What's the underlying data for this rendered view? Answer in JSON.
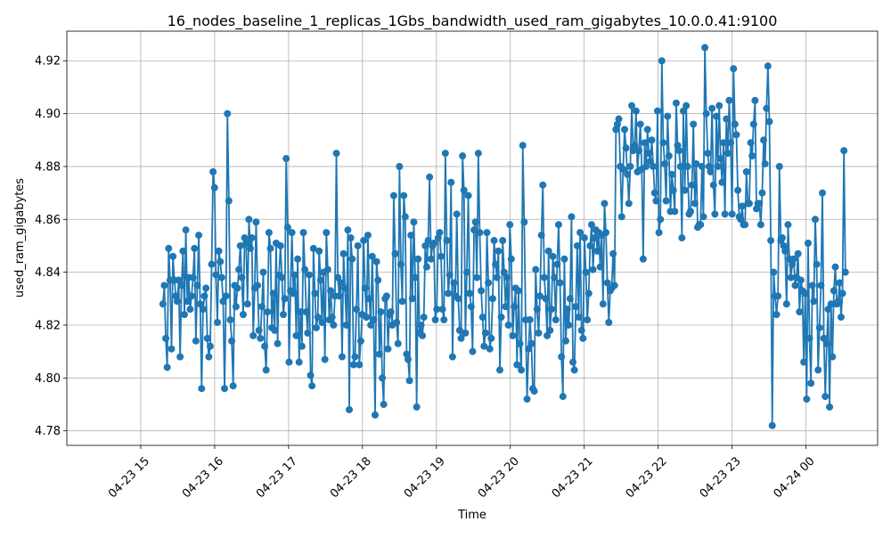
{
  "chart_data": {
    "type": "line",
    "title": "16_nodes_baseline_1_replicas_1Gbs_bandwidth_used_ram_gigabytes_10.0.0.41:9100",
    "xlabel": "Time",
    "ylabel": "used_ram_gigabytes",
    "x_ticks": [
      "04-23 15",
      "04-23 16",
      "04-23 17",
      "04-23 18",
      "04-23 19",
      "04-23 20",
      "04-23 21",
      "04-23 22",
      "04-23 23",
      "04-24 00"
    ],
    "y_ticks": [
      "4.78",
      "4.80",
      "4.82",
      "4.84",
      "4.86",
      "4.88",
      "4.90",
      "4.92"
    ],
    "xlim_hours": [
      14.0,
      24.97
    ],
    "ylim": [
      4.7745,
      4.9312
    ],
    "grid": true,
    "marker": "circle",
    "line_color": "#1f77b4",
    "series": [
      {
        "x_start": "04-23 15:18",
        "x_end": "04-24 00:32",
        "values": [
          4.828,
          4.835,
          4.815,
          4.804,
          4.849,
          4.837,
          4.811,
          4.846,
          4.837,
          4.831,
          4.829,
          4.837,
          4.808,
          4.835,
          4.848,
          4.824,
          4.856,
          4.829,
          4.838,
          4.826,
          4.831,
          4.838,
          4.849,
          4.814,
          4.835,
          4.854,
          4.828,
          4.796,
          4.826,
          4.831,
          4.834,
          4.815,
          4.808,
          4.812,
          4.843,
          4.878,
          4.872,
          4.839,
          4.821,
          4.848,
          4.844,
          4.838,
          4.829,
          4.796,
          4.831,
          4.9,
          4.867,
          4.822,
          4.814,
          4.797,
          4.835,
          4.827,
          4.834,
          4.841,
          4.85,
          4.838,
          4.824,
          4.853,
          4.851,
          4.828,
          4.86,
          4.849,
          4.853,
          4.816,
          4.834,
          4.859,
          4.835,
          4.818,
          4.815,
          4.827,
          4.84,
          4.812,
          4.803,
          4.825,
          4.855,
          4.849,
          4.819,
          4.832,
          4.818,
          4.851,
          4.813,
          4.839,
          4.85,
          4.838,
          4.824,
          4.83,
          4.883,
          4.857,
          4.806,
          4.833,
          4.855,
          4.832,
          4.839,
          4.816,
          4.845,
          4.806,
          4.825,
          4.812,
          4.855,
          4.841,
          4.825,
          4.817,
          4.839,
          4.801,
          4.797,
          4.849,
          4.832,
          4.819,
          4.823,
          4.848,
          4.837,
          4.821,
          4.84,
          4.807,
          4.855,
          4.841,
          4.822,
          4.833,
          4.823,
          4.82,
          4.831,
          4.885,
          4.838,
          4.831,
          4.836,
          4.808,
          4.847,
          4.834,
          4.82,
          4.856,
          4.788,
          4.853,
          4.845,
          4.805,
          4.808,
          4.826,
          4.85,
          4.805,
          4.814,
          4.824,
          4.852,
          4.834,
          4.823,
          4.854,
          4.83,
          4.82,
          4.846,
          4.822,
          4.786,
          4.844,
          4.837,
          4.809,
          4.825,
          4.8,
          4.79,
          4.83,
          4.831,
          4.811,
          4.824,
          4.825,
          4.82,
          4.869,
          4.847,
          4.821,
          4.813,
          4.88,
          4.843,
          4.829,
          4.869,
          4.861,
          4.809,
          4.807,
          4.799,
          4.854,
          4.83,
          4.859,
          4.838,
          4.789,
          4.845,
          4.817,
          4.82,
          4.816,
          4.823,
          4.85,
          4.842,
          4.852,
          4.876,
          4.845,
          4.85,
          4.851,
          4.822,
          4.826,
          4.853,
          4.855,
          4.846,
          4.826,
          4.822,
          4.885,
          4.852,
          4.832,
          4.839,
          4.874,
          4.808,
          4.836,
          4.831,
          4.862,
          4.83,
          4.818,
          4.815,
          4.884,
          4.871,
          4.817,
          4.84,
          4.869,
          4.832,
          4.827,
          4.81,
          4.856,
          4.859,
          4.838,
          4.885,
          4.855,
          4.833,
          4.823,
          4.812,
          4.817,
          4.855,
          4.836,
          4.811,
          4.815,
          4.83,
          4.852,
          4.843,
          4.838,
          4.848,
          4.803,
          4.823,
          4.852,
          4.84,
          4.827,
          4.838,
          4.82,
          4.858,
          4.845,
          4.816,
          4.827,
          4.834,
          4.805,
          4.833,
          4.813,
          4.803,
          4.888,
          4.859,
          4.822,
          4.792,
          4.811,
          4.822,
          4.813,
          4.796,
          4.795,
          4.841,
          4.826,
          4.817,
          4.831,
          4.854,
          4.873,
          4.838,
          4.83,
          4.816,
          4.848,
          4.818,
          4.826,
          4.846,
          4.838,
          4.822,
          4.843,
          4.858,
          4.836,
          4.808,
          4.793,
          4.845,
          4.814,
          4.826,
          4.82,
          4.83,
          4.861,
          4.806,
          4.803,
          4.827,
          4.85,
          4.823,
          4.855,
          4.818,
          4.815,
          4.853,
          4.84,
          4.822,
          4.832,
          4.85,
          4.858,
          4.841,
          4.853,
          4.856,
          4.848,
          4.855,
          4.842,
          4.854,
          4.828,
          4.866,
          4.855,
          4.836,
          4.821,
          4.833,
          4.834,
          4.847,
          4.835,
          4.894,
          4.896,
          4.898,
          4.88,
          4.861,
          4.879,
          4.894,
          4.887,
          4.877,
          4.866,
          4.88,
          4.903,
          4.886,
          4.888,
          4.901,
          4.878,
          4.886,
          4.896,
          4.879,
          4.845,
          4.889,
          4.88,
          4.894,
          4.885,
          4.882,
          4.89,
          4.88,
          4.87,
          4.867,
          4.901,
          4.855,
          4.86,
          4.92,
          4.889,
          4.881,
          4.867,
          4.899,
          4.884,
          4.863,
          4.877,
          4.871,
          4.863,
          4.904,
          4.888,
          4.886,
          4.88,
          4.853,
          4.901,
          4.871,
          4.903,
          4.88,
          4.862,
          4.863,
          4.873,
          4.896,
          4.866,
          4.881,
          4.857,
          4.858,
          4.858,
          4.88,
          4.861,
          4.925,
          4.9,
          4.885,
          4.88,
          4.878,
          4.902,
          4.873,
          4.862,
          4.899,
          4.88,
          4.903,
          4.883,
          4.874,
          4.889,
          4.862,
          4.898,
          4.885,
          4.905,
          4.889,
          4.862,
          4.917,
          4.896,
          4.892,
          4.871,
          4.861,
          4.86,
          4.865,
          4.858,
          4.858,
          4.878,
          4.866,
          4.866,
          4.889,
          4.884,
          4.896,
          4.905,
          4.864,
          4.866,
          4.866,
          4.858,
          4.87,
          4.89,
          4.881,
          4.902,
          4.918,
          4.897,
          4.852,
          4.782,
          4.84,
          4.831,
          4.824,
          4.831,
          4.88,
          4.852,
          4.853,
          4.85,
          4.848,
          4.828,
          4.858,
          4.845,
          4.838,
          4.843,
          4.845,
          4.835,
          4.838,
          4.847,
          4.825,
          4.837,
          4.833,
          4.806,
          4.832,
          4.792,
          4.851,
          4.815,
          4.798,
          4.835,
          4.829,
          4.86,
          4.843,
          4.803,
          4.819,
          4.835,
          4.87,
          4.815,
          4.793,
          4.813,
          4.826,
          4.789,
          4.828,
          4.808,
          4.833,
          4.842,
          4.828,
          4.829,
          4.836,
          4.823,
          4.832,
          4.886,
          4.84
        ]
      }
    ]
  }
}
